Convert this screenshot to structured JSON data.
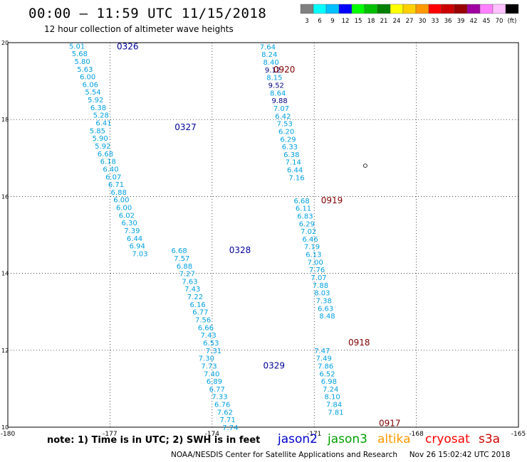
{
  "header": {
    "title": "00:00 – 11:59 UTC 11/15/2018",
    "subtitle": "12 hour collection of altimeter wave heights"
  },
  "footer": {
    "note": "note:  1) Time is in UTC;  2) SWH is in feet",
    "credit": "NOAA/NESDIS Center for Satellite Applications and Research",
    "timestamp": "Nov 26 15:02:42 UTC 2018"
  },
  "satellites": [
    {
      "name": "jason2",
      "color": "#0000cc"
    },
    {
      "name": "jason3",
      "color": "#00a000"
    },
    {
      "name": "altika",
      "color": "#ff9900"
    },
    {
      "name": "cryosat",
      "color": "#ff0000"
    },
    {
      "name": "s3a",
      "color": "#cc0000"
    }
  ],
  "colors": {
    "label_low": "#00a0e0",
    "label_mid": "#000080",
    "pass_jason2": "#000099",
    "pass_s3a": "#800000",
    "grid": "#000000"
  },
  "chart_data": {
    "type": "scatter",
    "title": "12 hour collection of altimeter wave heights",
    "xlim": [
      -180,
      -165
    ],
    "ylim": [
      10,
      20
    ],
    "x_ticks": [
      "-180",
      "-177",
      "-174",
      "-171",
      "-168",
      "-165"
    ],
    "y_ticks": [
      "10",
      "12",
      "14",
      "16",
      "18",
      "20"
    ],
    "grid": true,
    "unit": "(ft)",
    "color_scale": {
      "labels": [
        "3",
        "6",
        "9",
        "12",
        "15",
        "18",
        "21",
        "24",
        "27",
        "30",
        "33",
        "36",
        "39",
        "42",
        "45",
        "70",
        "(ft)"
      ],
      "colors": [
        "#808080",
        "#00ffff",
        "#00c0ff",
        "#0000ff",
        "#00ff00",
        "#00c000",
        "#008000",
        "#ffff00",
        "#ffd000",
        "#ff9900",
        "#ff0000",
        "#cc0000",
        "#990000",
        "#a000a0",
        "#ff80ff",
        "#ffc0ff",
        "#000000"
      ]
    },
    "passes": [
      {
        "id": "0326",
        "satellite": "jason2",
        "label_lon": -176.8,
        "label_lat": 19.9,
        "values": [
          "5.01",
          "5.68",
          "5.80",
          "5.63",
          "6.00",
          "6.06",
          "5.54",
          "5.92",
          "6.38",
          "5.28",
          "6.41"
        ],
        "lat_start": 19.92,
        "lat_step": -0.2,
        "lon_start": -178.2,
        "lon_step": 0.078
      },
      {
        "id": "0327",
        "satellite": "jason2",
        "label_lon": -175.1,
        "label_lat": 17.8,
        "values": [
          "5.85",
          "5.90",
          "5.92",
          "6.68",
          "6.18",
          "6.40",
          "6.07",
          "6.71",
          "6.88",
          "6.00",
          "6.00",
          "6.02",
          "6.30",
          "7.39",
          "6.44",
          "6.94",
          "7.03"
        ],
        "lat_start": 17.72,
        "lat_step": -0.2,
        "lon_start": -177.6,
        "lon_step": 0.078
      },
      {
        "id": "0328",
        "satellite": "jason2",
        "label_lon": -173.5,
        "label_lat": 14.6,
        "values": [
          "6.68",
          "7.57",
          "6.88",
          "7.27",
          "7.63",
          "7.43",
          "7.22",
          "6.16",
          "6.77",
          "7.56",
          "6.66",
          "7.43",
          "6.53",
          "7.31"
        ],
        "lat_start": 14.6,
        "lat_step": -0.2,
        "lon_start": -175.2,
        "lon_step": 0.078
      },
      {
        "id": "0329",
        "satellite": "jason2",
        "label_lon": -172.5,
        "label_lat": 11.6,
        "values": [
          "7.30",
          "7.73",
          "7.40",
          "6.89",
          "6.77",
          "7.33",
          "6.76",
          "7.62",
          "7.71",
          "7.74"
        ],
        "lat_start": 11.8,
        "lat_step": -0.2,
        "lon_start": -174.4,
        "lon_step": 0.078
      },
      {
        "id": "0920",
        "satellite": "s3a",
        "label_lon": -172.2,
        "label_lat": 19.3,
        "values": [
          "7.64",
          "8.24",
          "8.40",
          "9.12",
          "8.15",
          "9.52",
          "8.64",
          "9.88",
          "7.07",
          "6.42",
          "7.53",
          "6.20",
          "6.29",
          "6.33",
          "6.38",
          "7.14",
          "6.44",
          "7.16"
        ],
        "lat_start": 19.9,
        "lat_step": -0.2,
        "lon_start": -172.6,
        "lon_step": 0.05
      },
      {
        "id": "0919",
        "satellite": "s3a",
        "label_lon": -170.8,
        "label_lat": 15.9,
        "values": [
          "6.68",
          "6.11",
          "6.83",
          "6.29",
          "7.02",
          "6.46",
          "7.19",
          "6.13",
          "7.00",
          "7.76",
          "7.07",
          "7.88",
          "8.03",
          "7.38",
          "6.63",
          "8.48"
        ],
        "lat_start": 15.9,
        "lat_step": -0.2,
        "lon_start": -171.6,
        "lon_step": 0.05
      },
      {
        "id": "0918",
        "satellite": "s3a",
        "label_lon": -170.0,
        "label_lat": 12.2,
        "values": [
          "7.47",
          "7.49",
          "7.86",
          "6.52",
          "6.98",
          "7.24",
          "8.10",
          "7.84",
          "7.81"
        ],
        "lat_start": 12.0,
        "lat_step": -0.2,
        "lon_start": -171.0,
        "lon_step": 0.05
      },
      {
        "id": "0917",
        "satellite": "s3a",
        "label_lon": -169.1,
        "label_lat": 10.1,
        "values": [],
        "lat_start": 10.1,
        "lat_step": -0.2,
        "lon_start": -169.1,
        "lon_step": 0.05
      }
    ],
    "islands": [
      {
        "name": "",
        "lon": -169.5,
        "lat": 16.8
      }
    ]
  }
}
